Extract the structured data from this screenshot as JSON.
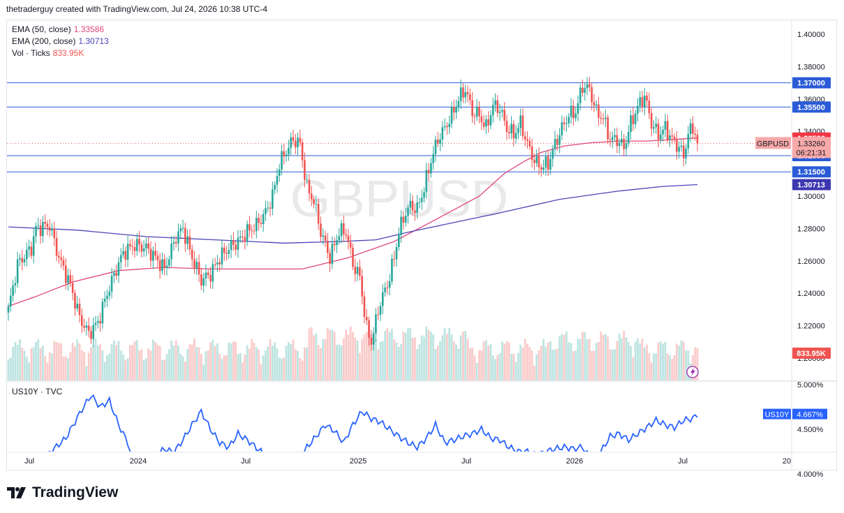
{
  "header": {
    "attribution": "thetraderguy created with TradingView.com, Jul 24, 2026 10:38 UTC-4"
  },
  "watermark": "GBPUSD",
  "legend": {
    "ema50": {
      "label": "EMA (50, close)",
      "value": "1.33586",
      "color": "#e0457b"
    },
    "ema200": {
      "label": "EMA (200, close)",
      "value": "1.30713",
      "color": "#4a44b4"
    },
    "vol": {
      "label": "Vol · Ticks",
      "value": "833.95K",
      "color": "#ef5350"
    }
  },
  "price_scale": {
    "ticks": [
      "1.40000",
      "1.38000",
      "1.36000",
      "1.34000",
      "1.30000",
      "1.28000",
      "1.26000",
      "1.24000",
      "1.22000",
      "1.20000"
    ]
  },
  "horizontal_levels": [
    {
      "label": "1.37000",
      "value": 1.37
    },
    {
      "label": "1.35500",
      "value": 1.355
    },
    {
      "label": "1.32500",
      "value": 1.325
    },
    {
      "label": "1.31500",
      "value": 1.315
    }
  ],
  "price_badges": {
    "ema50": {
      "label": "1.33586",
      "value": 1.33586,
      "color": "#f23645"
    },
    "ema200": {
      "label": "1.30713",
      "value": 1.30713,
      "color": "#3c36b0"
    },
    "symbol": {
      "name": "GBPUSD",
      "price": "1.33260",
      "countdown": "06:21:31",
      "color": "#f7a9a8"
    },
    "volume": {
      "label": "833.95K",
      "color": "#ef5350"
    }
  },
  "lower_pane": {
    "title": "US10Y · TVC",
    "badge": "4.667%",
    "ticks": [
      "5.000%",
      "4.500%",
      "4.000%"
    ],
    "color": "#2962ff"
  },
  "time_axis": {
    "labels": [
      "Jul",
      "2024",
      "Jul",
      "2025",
      "Jul",
      "2026",
      "Jul",
      "20"
    ]
  },
  "branding": {
    "name": "TradingView"
  },
  "chart_data": {
    "type": "candlestick",
    "symbol": "GBPUSD",
    "timeframe": "weekly",
    "ylim": [
      1.19,
      1.405
    ],
    "series": [
      {
        "name": "EMA (50, close)",
        "points": [
          [
            0,
            1.232
          ],
          [
            12,
            1.238
          ],
          [
            28,
            1.247
          ],
          [
            48,
            1.254
          ],
          [
            68,
            1.256
          ],
          [
            88,
            1.255
          ],
          [
            108,
            1.255
          ],
          [
            128,
            1.255
          ],
          [
            148,
            1.262
          ],
          [
            168,
            1.272
          ],
          [
            188,
            1.287
          ],
          [
            205,
            1.3
          ],
          [
            216,
            1.314
          ],
          [
            224,
            1.321
          ],
          [
            232,
            1.327
          ],
          [
            242,
            1.331
          ],
          [
            254,
            1.333
          ],
          [
            266,
            1.334
          ],
          [
            278,
            1.334
          ],
          [
            290,
            1.335
          ],
          [
            300,
            1.336
          ]
        ]
      },
      {
        "name": "EMA (200, close)",
        "points": [
          [
            0,
            1.281
          ],
          [
            30,
            1.279
          ],
          [
            60,
            1.275
          ],
          [
            90,
            1.273
          ],
          [
            120,
            1.271
          ],
          [
            145,
            1.272
          ],
          [
            160,
            1.273
          ],
          [
            175,
            1.278
          ],
          [
            195,
            1.284
          ],
          [
            215,
            1.29
          ],
          [
            240,
            1.298
          ],
          [
            265,
            1.303
          ],
          [
            285,
            1.306
          ],
          [
            300,
            1.3071
          ]
        ]
      }
    ],
    "last": {
      "close": 1.3326,
      "volume": "833.95K"
    },
    "us10y_last": 4.667
  }
}
